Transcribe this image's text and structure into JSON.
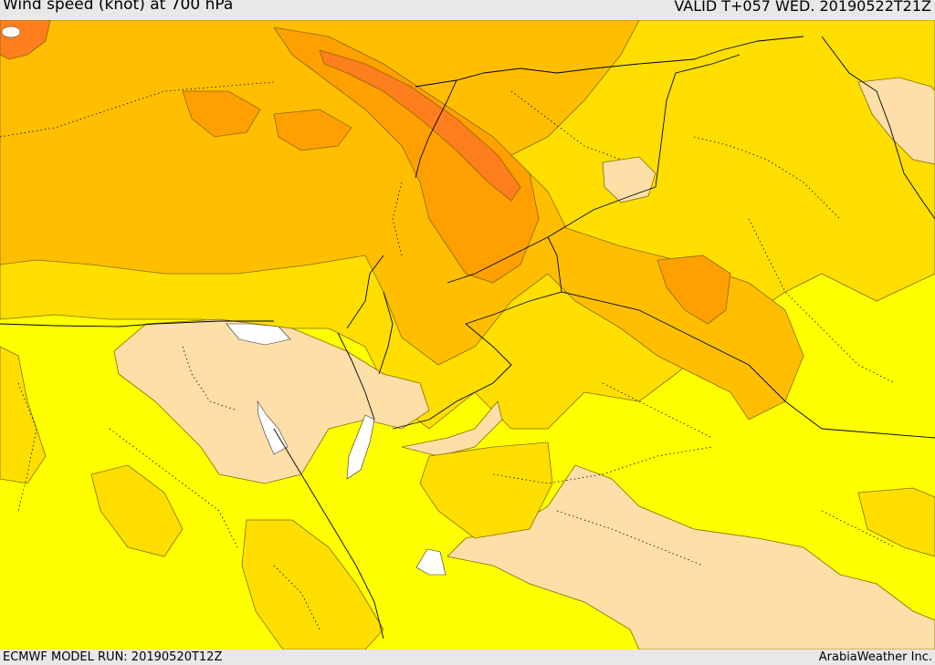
{
  "header": {
    "title": "Wind speed (knot) at 700 hPa",
    "valid": "VALID T+057 WED. 20190522T21Z"
  },
  "footer": {
    "model_run": "ECMWF MODEL RUN: 20190520T12Z",
    "brand": "ArabiaWeather Inc."
  },
  "palette": {
    "calm": "#ffdfa8",
    "light": "#ffff00",
    "moderate": "#ffdf00",
    "fresh": "#ffbf00",
    "strong": "#ff9f00",
    "very_strong": "#ff7f1f",
    "water": "#ffffff"
  }
}
